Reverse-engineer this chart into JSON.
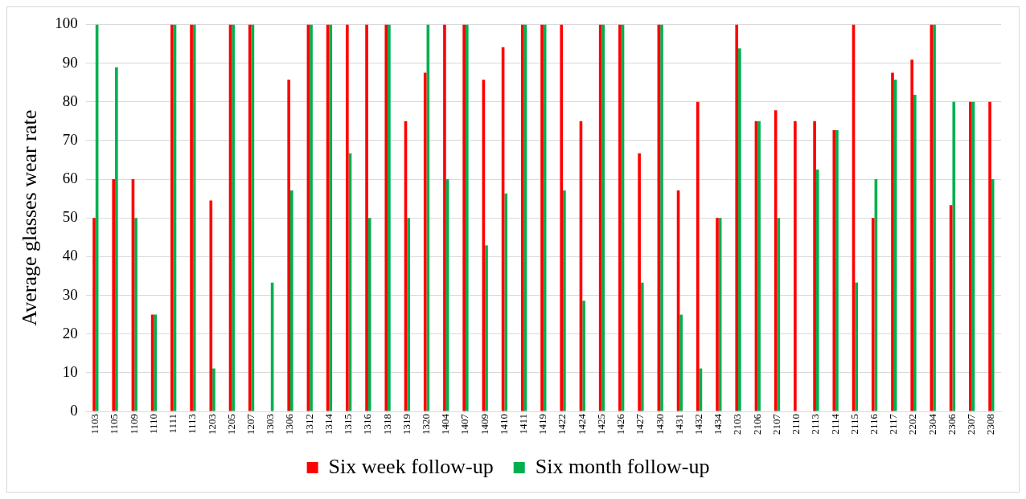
{
  "chart_data": {
    "type": "bar",
    "ylabel": "Average glasses wear rate",
    "categories": [
      "1103",
      "1105",
      "1109",
      "1110",
      "1111",
      "1113",
      "1203",
      "1205",
      "1207",
      "1303",
      "1306",
      "1312",
      "1314",
      "1315",
      "1316",
      "1318",
      "1319",
      "1320",
      "1404",
      "1407",
      "1409",
      "1410",
      "1411",
      "1419",
      "1422",
      "1424",
      "1425",
      "1426",
      "1427",
      "1430",
      "1431",
      "1432",
      "1434",
      "2103",
      "2106",
      "2107",
      "2110",
      "2113",
      "2114",
      "2115",
      "2116",
      "2117",
      "2202",
      "2304",
      "2306",
      "2307",
      "2308"
    ],
    "series": [
      {
        "name": "Six week follow-up",
        "color": "#ff0000",
        "values": [
          50,
          60,
          60,
          25,
          100,
          100,
          54.5,
          100,
          100,
          null,
          85.7,
          100,
          100,
          100,
          100,
          100,
          75,
          87.5,
          100,
          100,
          85.7,
          94.1,
          100,
          100,
          100,
          75,
          100,
          100,
          66.7,
          100,
          57.1,
          80,
          50,
          100,
          75,
          77.8,
          75,
          75,
          72.7,
          100,
          50,
          87.5,
          90.9,
          100,
          53.3,
          80,
          80
        ]
      },
      {
        "name": "Six month follow-up",
        "color": "#00b050",
        "values": [
          100,
          88.9,
          50,
          25,
          100,
          100,
          11.1,
          100,
          100,
          33.3,
          57.1,
          100,
          100,
          66.7,
          50,
          100,
          50,
          100,
          60,
          100,
          42.9,
          56.3,
          100,
          100,
          57.1,
          28.6,
          100,
          100,
          33.3,
          100,
          25,
          11.1,
          50,
          93.8,
          75,
          50,
          null,
          62.5,
          72.7,
          33.3,
          60,
          85.7,
          81.8,
          100,
          80,
          80,
          60
        ]
      }
    ],
    "ylim": [
      0,
      100
    ],
    "yticks": [
      0,
      10,
      20,
      30,
      40,
      50,
      60,
      70,
      80,
      90,
      100
    ],
    "grid": "y",
    "legend": "bottom"
  }
}
